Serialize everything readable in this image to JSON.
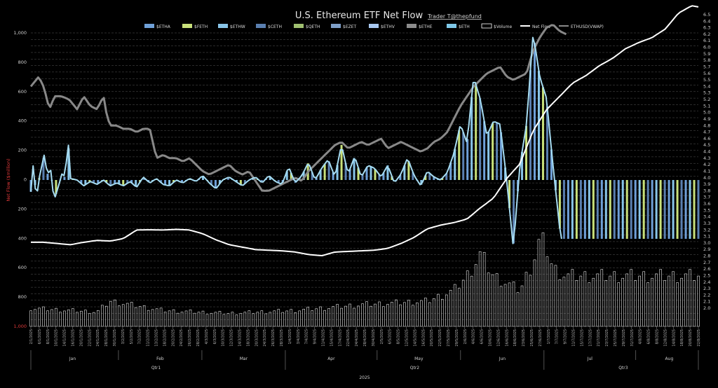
{
  "chart_data": {
    "type": "bar",
    "title": "U.S. Ethereum ETF Net Flow",
    "credit": "Trader T@thepfund",
    "ylabel": "Net Flow ($million)",
    "ylim": [
      -1000,
      1000
    ],
    "y2lim": [
      2.0,
      6.5
    ],
    "y_ticks": [
      "1,000",
      "800",
      "600",
      "400",
      "200",
      "0",
      "200",
      "400",
      "600",
      "800",
      "1,000"
    ],
    "y2_ticks": [
      "6.5",
      "6.4",
      "6.3",
      "6.2",
      "6.1",
      "6.0",
      "5.9",
      "5.8",
      "5.7",
      "5.6",
      "5.5",
      "5.4",
      "5.3",
      "5.2",
      "5.1",
      "5.0",
      "4.9",
      "4.8",
      "4.7",
      "4.6",
      "4.5",
      "4.4",
      "4.3",
      "4.2",
      "4.1",
      "4.0",
      "3.9",
      "3.8",
      "3.7",
      "3.6",
      "3.5",
      "3.4",
      "3.3",
      "3.2",
      "3.1",
      "3.0",
      "2.9",
      "2.8",
      "2.7",
      "2.6",
      "2.5",
      "2.4",
      "2.3",
      "2.2",
      "2.1",
      "2.0"
    ],
    "legend": [
      {
        "name": "$ETHA",
        "color": "#6fa0d8",
        "kind": "bar"
      },
      {
        "name": "$FETH",
        "color": "#c8e07a",
        "kind": "bar"
      },
      {
        "name": "$ETHW",
        "color": "#88c4e8",
        "kind": "bar"
      },
      {
        "name": "$CETH",
        "color": "#5a7fb0",
        "kind": "bar"
      },
      {
        "name": "$QETH",
        "color": "#9fbf70",
        "kind": "bar"
      },
      {
        "name": "$EZET",
        "color": "#7f9fc8",
        "kind": "bar"
      },
      {
        "name": "$ETHV",
        "color": "#a8c8f0",
        "kind": "bar"
      },
      {
        "name": "$ETHE",
        "color": "#8c8c8c",
        "kind": "bar"
      },
      {
        "name": "$ETH",
        "color": "#7ec8e8",
        "kind": "bar"
      },
      {
        "name": "$Volume",
        "color": "#ffffff",
        "kind": "box"
      },
      {
        "name": "Net Flow",
        "color": "#ffffff",
        "kind": "line"
      },
      {
        "name": "ETHUSD(VWAP)",
        "color": "#888888",
        "kind": "line"
      }
    ],
    "x_dates": [
      "2/1/2025",
      "6/1/2025",
      "8/1/2025",
      "10/1/2025",
      "14/1/2025",
      "16/1/2025",
      "20/1/2025",
      "22/1/2025",
      "24/1/2025",
      "28/1/2025",
      "30/1/2025",
      "3/2/2025",
      "5/2/2025",
      "7/2/2025",
      "11/2/2025",
      "13/2/2025",
      "18/2/2025",
      "20/2/2025",
      "24/2/2025",
      "26/2/2025",
      "28/2/2025",
      "4/3/2025",
      "6/3/2025",
      "10/3/2025",
      "12/3/2025",
      "14/3/2025",
      "18/3/2025",
      "20/3/2025",
      "24/3/2025",
      "26/3/2025",
      "28/3/2025",
      "1/4/2025",
      "3/4/2025",
      "7/4/2025",
      "9/4/2025",
      "11/4/2025",
      "15/4/2025",
      "17/4/2025",
      "22/4/2025",
      "24/4/2025",
      "28/4/2025",
      "30/4/2025",
      "2/5/2025",
      "6/5/2025",
      "8/5/2025",
      "12/5/2025",
      "14/5/2025",
      "16/5/2025",
      "20/5/2025",
      "22/5/2025",
      "27/5/2025",
      "29/5/2025",
      "2/6/2025",
      "4/6/2025",
      "6/6/2025",
      "10/6/2025",
      "12/6/2025",
      "16/6/2025",
      "18/6/2025",
      "23/6/2025",
      "25/6/2025",
      "27/6/2025",
      "1/7/2025",
      "7/7/2025",
      "9/7/2025",
      "11/7/2025",
      "15/7/2025",
      "17/7/2025",
      "21/7/2025",
      "23/7/2025",
      "25/7/2025",
      "29/7/2025",
      "31/7/2025",
      "4/8/2025",
      "6/8/2025",
      "8/8/2025",
      "12/8/2025",
      "14/8/2025",
      "18/8/2025",
      "20/8/2025",
      "22/8/2025"
    ],
    "months": [
      {
        "label": "Jan",
        "from": 0,
        "to": 10
      },
      {
        "label": "Feb",
        "from": 11,
        "to": 20
      },
      {
        "label": "Mar",
        "from": 21,
        "to": 30
      },
      {
        "label": "Apr",
        "from": 31,
        "to": 41
      },
      {
        "label": "May",
        "from": 42,
        "to": 51
      },
      {
        "label": "Jun",
        "from": 52,
        "to": 61
      },
      {
        "label": "Jul",
        "from": 62,
        "to": 72
      },
      {
        "label": "Aug",
        "from": 73,
        "to": 80
      }
    ],
    "quarters": [
      {
        "label": "Qtr1",
        "from": 0,
        "to": 30
      },
      {
        "label": "Qtr2",
        "from": 31,
        "to": 61
      },
      {
        "label": "Qtr3",
        "from": 62,
        "to": 80
      }
    ],
    "year": "2025",
    "flow_profile": [
      [
        0,
        -80
      ],
      [
        4,
        130
      ],
      [
        8,
        -150
      ],
      [
        12,
        0
      ],
      [
        20,
        170
      ],
      [
        25,
        40
      ],
      [
        30,
        70
      ],
      [
        35,
        -140
      ],
      [
        42,
        -40
      ],
      [
        48,
        60
      ],
      [
        52,
        5
      ],
      [
        56,
        300
      ],
      [
        60,
        10
      ],
      [
        70,
        0
      ],
      [
        80,
        -40
      ],
      [
        90,
        -10
      ],
      [
        100,
        -30
      ],
      [
        110,
        0
      ],
      [
        120,
        -40
      ],
      [
        130,
        -20
      ],
      [
        140,
        -40
      ],
      [
        150,
        -10
      ],
      [
        160,
        -50
      ],
      [
        170,
        20
      ],
      [
        180,
        -20
      ],
      [
        190,
        10
      ],
      [
        200,
        -30
      ],
      [
        210,
        -40
      ],
      [
        220,
        0
      ],
      [
        230,
        -20
      ],
      [
        240,
        10
      ],
      [
        250,
        -10
      ],
      [
        260,
        30
      ],
      [
        270,
        -20
      ],
      [
        280,
        -60
      ],
      [
        290,
        0
      ],
      [
        300,
        20
      ],
      [
        310,
        -10
      ],
      [
        320,
        -40
      ],
      [
        330,
        0
      ],
      [
        340,
        20
      ],
      [
        350,
        -20
      ],
      [
        360,
        30
      ],
      [
        370,
        -10
      ],
      [
        380,
        -30
      ],
      [
        390,
        90
      ],
      [
        400,
        -20
      ],
      [
        410,
        30
      ],
      [
        420,
        120
      ],
      [
        430,
        0
      ],
      [
        440,
        80
      ],
      [
        450,
        140
      ],
      [
        460,
        20
      ],
      [
        470,
        240
      ],
      [
        480,
        40
      ],
      [
        490,
        160
      ],
      [
        500,
        20
      ],
      [
        510,
        100
      ],
      [
        520,
        80
      ],
      [
        530,
        20
      ],
      [
        540,
        100
      ],
      [
        550,
        -20
      ],
      [
        560,
        40
      ],
      [
        570,
        150
      ],
      [
        580,
        30
      ],
      [
        590,
        -40
      ],
      [
        600,
        60
      ],
      [
        610,
        20
      ],
      [
        620,
        0
      ],
      [
        630,
        50
      ],
      [
        640,
        180
      ],
      [
        650,
        380
      ],
      [
        660,
        250
      ],
      [
        670,
        700
      ],
      [
        680,
        550
      ],
      [
        690,
        300
      ],
      [
        700,
        400
      ],
      [
        710,
        380
      ],
      [
        720,
        0
      ],
      [
        730,
        -460
      ],
      [
        740,
        100
      ],
      [
        750,
        380
      ],
      [
        760,
        1000
      ],
      [
        770,
        700
      ],
      [
        780,
        560
      ],
      [
        790,
        100
      ],
      [
        800,
        -320
      ],
      [
        803,
        -400
      ]
    ],
    "netflow_profile": [
      [
        0,
        -460
      ],
      [
        20,
        -460
      ],
      [
        40,
        -470
      ],
      [
        60,
        -480
      ],
      [
        80,
        -460
      ],
      [
        100,
        -445
      ],
      [
        120,
        -450
      ],
      [
        140,
        -430
      ],
      [
        160,
        -360
      ],
      [
        180,
        -358
      ],
      [
        200,
        -360
      ],
      [
        220,
        -355
      ],
      [
        240,
        -360
      ],
      [
        260,
        -390
      ],
      [
        280,
        -440
      ],
      [
        300,
        -480
      ],
      [
        320,
        -500
      ],
      [
        340,
        -520
      ],
      [
        360,
        -525
      ],
      [
        380,
        -530
      ],
      [
        400,
        -540
      ],
      [
        420,
        -560
      ],
      [
        440,
        -570
      ],
      [
        460,
        -540
      ],
      [
        480,
        -535
      ],
      [
        500,
        -530
      ],
      [
        520,
        -525
      ],
      [
        540,
        -510
      ],
      [
        560,
        -470
      ],
      [
        580,
        -420
      ],
      [
        600,
        -350
      ],
      [
        620,
        -320
      ],
      [
        640,
        -300
      ],
      [
        660,
        -270
      ],
      [
        680,
        -180
      ],
      [
        700,
        -100
      ],
      [
        720,
        60
      ],
      [
        740,
        180
      ],
      [
        760,
        450
      ],
      [
        780,
        620
      ],
      [
        800,
        730
      ],
      [
        820,
        840
      ],
      [
        840,
        900
      ],
      [
        860,
        980
      ],
      [
        880,
        1040
      ],
      [
        900,
        1120
      ],
      [
        920,
        1170
      ],
      [
        940,
        1210
      ],
      [
        960,
        1280
      ],
      [
        980,
        1410
      ],
      [
        1000,
        1470
      ],
      [
        1010,
        1460
      ]
    ],
    "vwap_profile": [
      [
        0,
        5.4
      ],
      [
        12,
        5.55
      ],
      [
        20,
        5.38
      ],
      [
        28,
        5.05
      ],
      [
        36,
        5.25
      ],
      [
        46,
        5.25
      ],
      [
        58,
        5.2
      ],
      [
        70,
        5.05
      ],
      [
        80,
        5.25
      ],
      [
        90,
        5.1
      ],
      [
        100,
        5.05
      ],
      [
        110,
        5.25
      ],
      [
        115,
        4.95
      ],
      [
        120,
        4.8
      ],
      [
        130,
        4.8
      ],
      [
        140,
        4.75
      ],
      [
        150,
        4.75
      ],
      [
        160,
        4.7
      ],
      [
        170,
        4.75
      ],
      [
        180,
        4.75
      ],
      [
        190,
        4.3
      ],
      [
        200,
        4.35
      ],
      [
        210,
        4.3
      ],
      [
        220,
        4.3
      ],
      [
        230,
        4.25
      ],
      [
        240,
        4.3
      ],
      [
        250,
        4.2
      ],
      [
        260,
        4.1
      ],
      [
        270,
        4.05
      ],
      [
        280,
        4.1
      ],
      [
        290,
        4.15
      ],
      [
        300,
        4.2
      ],
      [
        310,
        4.1
      ],
      [
        320,
        4.05
      ],
      [
        330,
        4.1
      ],
      [
        340,
        3.95
      ],
      [
        350,
        3.8
      ],
      [
        360,
        3.8
      ],
      [
        370,
        3.85
      ],
      [
        380,
        3.9
      ],
      [
        390,
        3.95
      ],
      [
        400,
        4.0
      ],
      [
        410,
        3.95
      ],
      [
        420,
        4.1
      ],
      [
        430,
        4.2
      ],
      [
        440,
        4.3
      ],
      [
        450,
        4.4
      ],
      [
        460,
        4.5
      ],
      [
        470,
        4.55
      ],
      [
        480,
        4.45
      ],
      [
        490,
        4.5
      ],
      [
        500,
        4.55
      ],
      [
        510,
        4.5
      ],
      [
        520,
        4.55
      ],
      [
        530,
        4.6
      ],
      [
        540,
        4.45
      ],
      [
        550,
        4.5
      ],
      [
        560,
        4.55
      ],
      [
        570,
        4.5
      ],
      [
        580,
        4.45
      ],
      [
        590,
        4.4
      ],
      [
        600,
        4.45
      ],
      [
        610,
        4.55
      ],
      [
        620,
        4.6
      ],
      [
        630,
        4.7
      ],
      [
        640,
        4.9
      ],
      [
        650,
        5.1
      ],
      [
        660,
        5.25
      ],
      [
        670,
        5.4
      ],
      [
        680,
        5.5
      ],
      [
        690,
        5.6
      ],
      [
        700,
        5.65
      ],
      [
        710,
        5.7
      ],
      [
        720,
        5.55
      ],
      [
        730,
        5.5
      ],
      [
        740,
        5.55
      ],
      [
        750,
        5.6
      ],
      [
        760,
        5.95
      ],
      [
        770,
        6.15
      ],
      [
        780,
        6.3
      ],
      [
        790,
        6.35
      ],
      [
        800,
        6.25
      ],
      [
        810,
        6.2
      ]
    ],
    "volume_profile": [
      [
        0,
        0.25
      ],
      [
        100,
        0.2
      ],
      [
        120,
        0.35
      ],
      [
        200,
        0.22
      ],
      [
        300,
        0.18
      ],
      [
        400,
        0.22
      ],
      [
        500,
        0.3
      ],
      [
        600,
        0.35
      ],
      [
        640,
        0.5
      ],
      [
        660,
        0.7
      ],
      [
        680,
        1.0
      ],
      [
        700,
        0.7
      ],
      [
        720,
        0.6
      ],
      [
        740,
        0.5
      ],
      [
        760,
        0.9
      ],
      [
        770,
        1.2
      ],
      [
        780,
        1.1
      ],
      [
        790,
        0.8
      ],
      [
        810,
        0.7
      ]
    ]
  }
}
